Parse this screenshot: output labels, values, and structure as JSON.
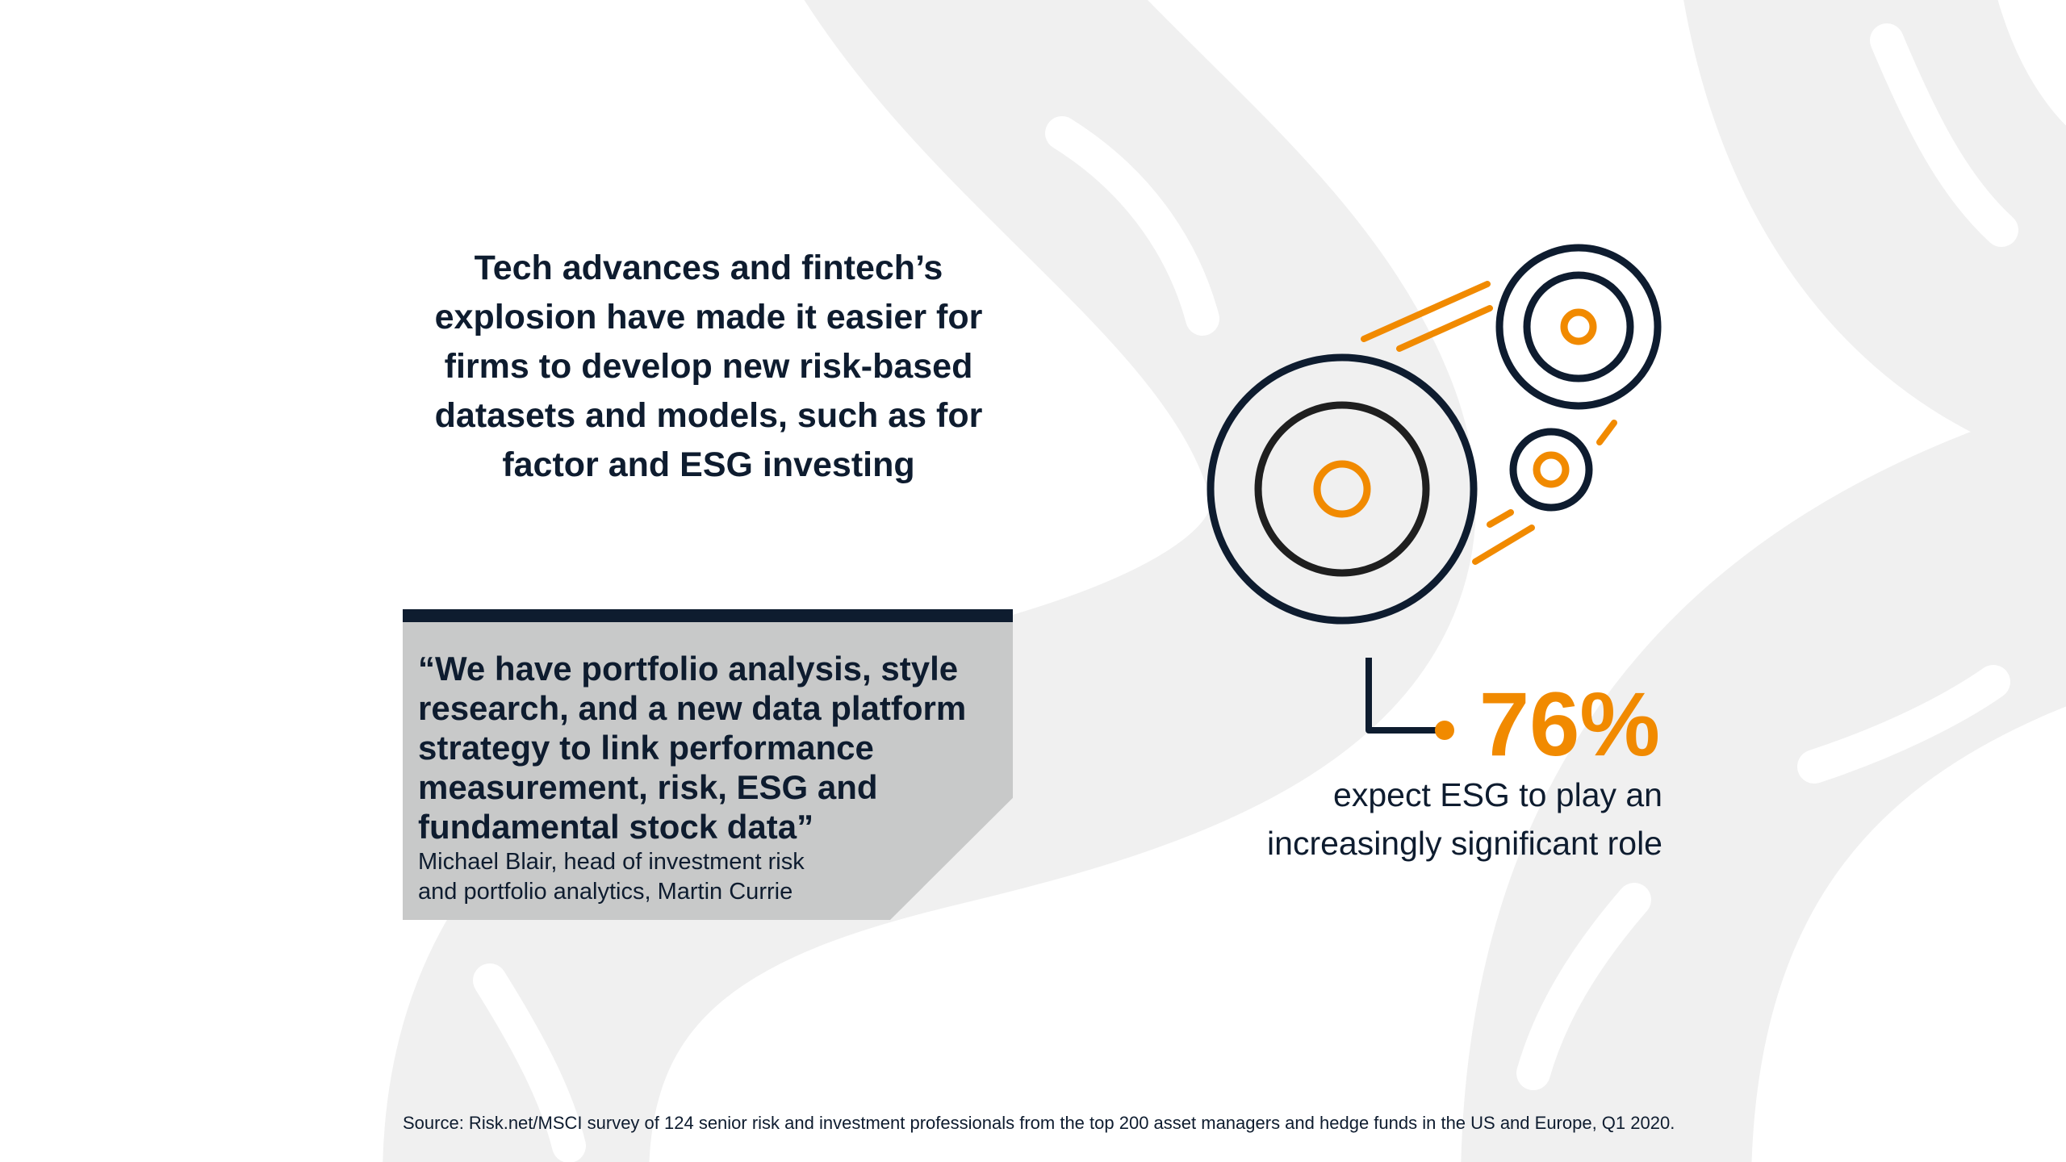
{
  "headline": "Tech advances and fintech’s\nexplosion have made it easier for\nfirms to develop new risk-based\ndatasets and models, such as for\nfactor and ESG investing",
  "quote": {
    "text": "“We have portfolio analysis, style\nresearch, and a new data platform\nstrategy to link performance\nmeasurement, risk, ESG and\nfundamental stock data”",
    "attribution": "Michael Blair, head of investment risk\nand portfolio analytics, Martin Currie"
  },
  "stat": {
    "value": "76%",
    "description": "expect ESG to play an\nincreasingly significant role"
  },
  "source": "Source: Risk.net/MSCI survey of 124 senior risk and investment professionals from the top 200 asset managers and hedge funds in the US and Europe, Q1 2020.",
  "illustration": {
    "icon": "spinning-wheels-icon",
    "connector": "elbow-connector-icon"
  },
  "colors": {
    "navy": "#0e1c2f",
    "orange": "#f18a00",
    "quote_panel": "#c8c9c9",
    "background_shapes": "#f0f0f0"
  }
}
